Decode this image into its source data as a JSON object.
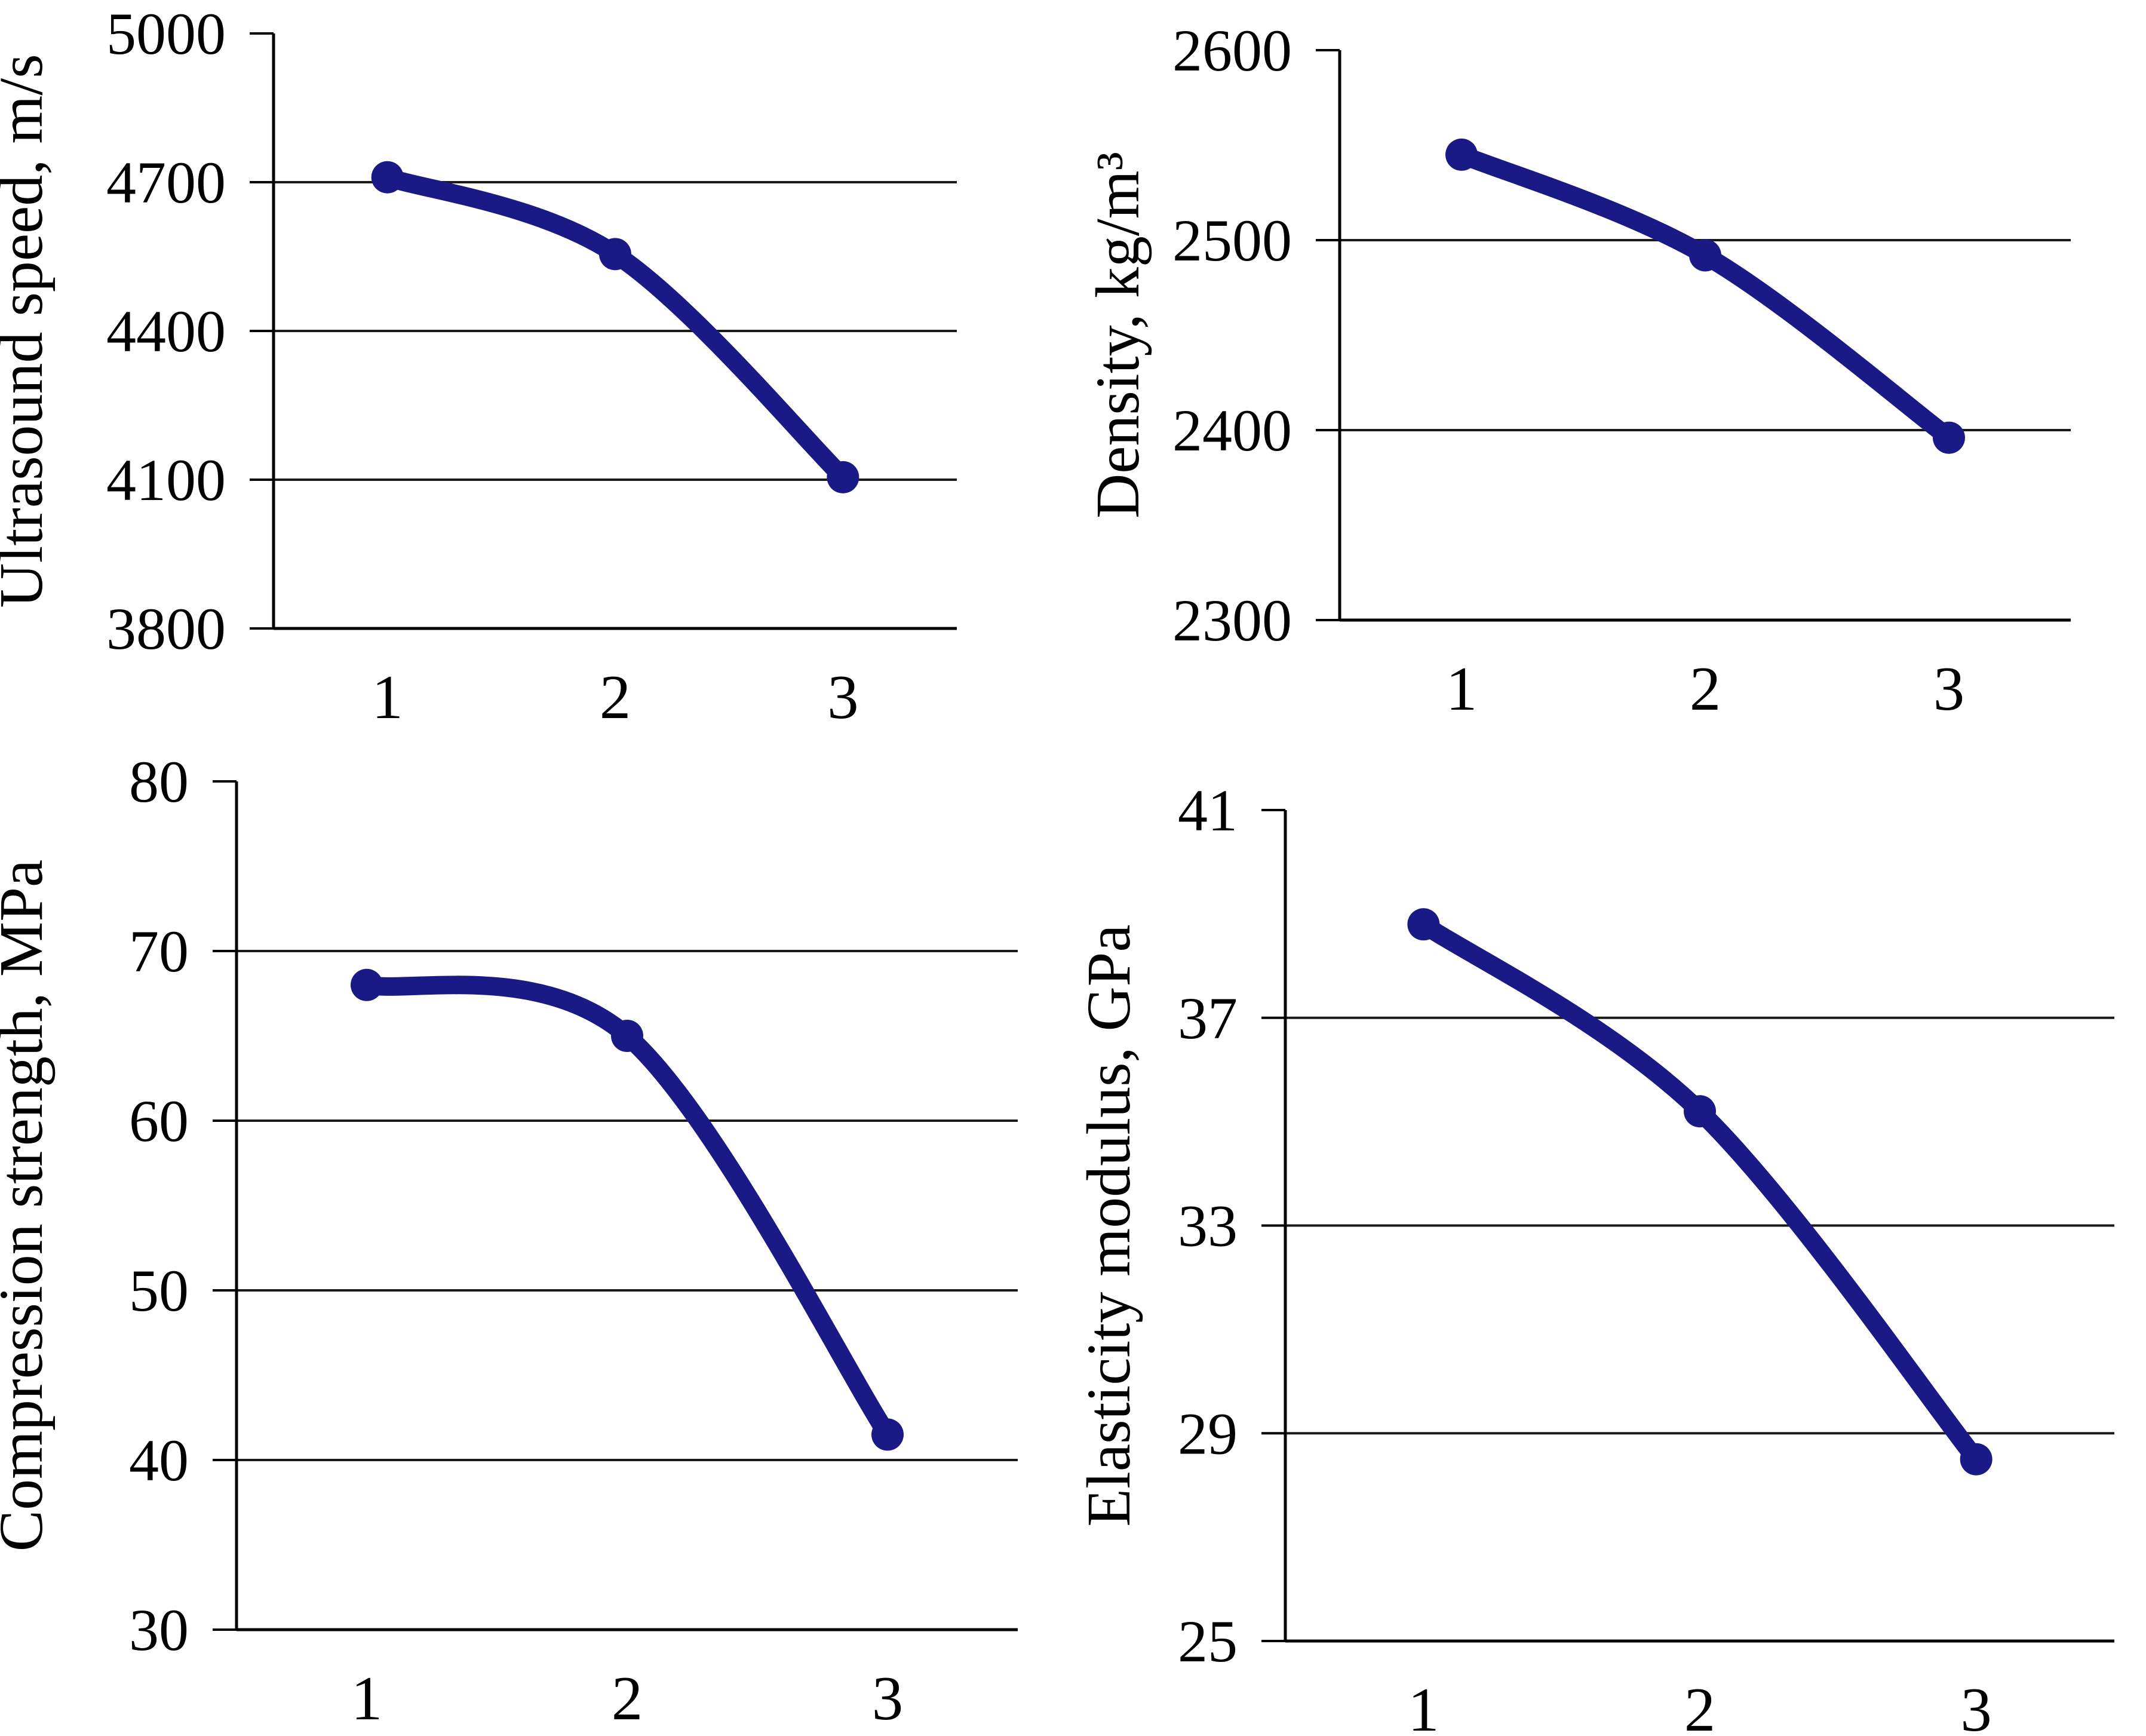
{
  "page": {
    "background": "#ffffff",
    "description": "Four smoothed line charts (2x2 grid) of concrete properties vs mix number"
  },
  "chart_data": [
    {
      "type": "line",
      "title": "",
      "ylabel": "Ultrasound speed, m/s",
      "xlabel": "",
      "categories": [
        "1",
        "2",
        "3"
      ],
      "values": [
        4710,
        4555,
        4105
      ],
      "ylim": [
        3800,
        5000
      ],
      "yticks": [
        3800,
        4100,
        4400,
        4700,
        5000
      ],
      "grid": "horizontal-inner",
      "smoothed": true,
      "markers": true,
      "line_color": "#1a1a87",
      "legend": "none"
    },
    {
      "type": "line",
      "title": "",
      "ylabel": "Density, kg/m³",
      "xlabel": "",
      "categories": [
        "1",
        "2",
        "3"
      ],
      "values": [
        2545,
        2492,
        2396
      ],
      "ylim": [
        2300,
        2600
      ],
      "yticks": [
        2300,
        2400,
        2500,
        2600
      ],
      "grid": "horizontal-inner",
      "smoothed": true,
      "markers": true,
      "line_color": "#1a1a87",
      "legend": "none"
    },
    {
      "type": "line",
      "title": "",
      "ylabel": "Compression strength, MPa",
      "xlabel": "",
      "categories": [
        "1",
        "2",
        "3"
      ],
      "values": [
        68,
        65,
        41.5
      ],
      "ylim": [
        30,
        80
      ],
      "yticks": [
        30,
        40,
        50,
        60,
        70,
        80
      ],
      "grid": "horizontal-inner",
      "smoothed": true,
      "markers": true,
      "line_color": "#1a1a87",
      "legend": "none"
    },
    {
      "type": "line",
      "title": "",
      "ylabel": "Elasticity modulus, GPa",
      "xlabel": "",
      "categories": [
        "1",
        "2",
        "3"
      ],
      "values": [
        38.8,
        35.2,
        28.5
      ],
      "ylim": [
        25,
        41
      ],
      "yticks": [
        25,
        29,
        33,
        37,
        41
      ],
      "grid": "horizontal-inner",
      "smoothed": true,
      "markers": true,
      "line_color": "#1a1a87",
      "legend": "none"
    }
  ],
  "style": {
    "grid_color": "#1a1a1a",
    "axis_color": "#000000",
    "text_color": "#000000"
  }
}
